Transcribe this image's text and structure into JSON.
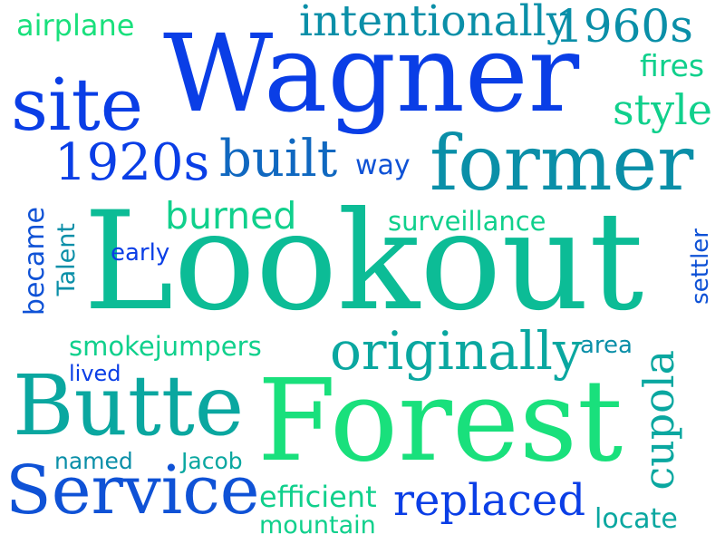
{
  "colors": {
    "background": "#ffffff",
    "palette": [
      "#0a3ee6",
      "#0f52d6",
      "#1068c0",
      "#0a8fa8",
      "#0aa7a0",
      "#0cbc96",
      "#10d08c",
      "#19e07c"
    ]
  },
  "words": [
    "Wagner",
    "Lookout",
    "Forest",
    "Butte",
    "Service",
    "former",
    "site",
    "originally",
    "1920s",
    "built",
    "1960s",
    "intentionally",
    "style",
    "fires",
    "airplane",
    "burned",
    "surveillance",
    "way",
    "early",
    "Talent",
    "became",
    "smokejumpers",
    "lived",
    "area",
    "cupola",
    "settler",
    "named",
    "Jacob",
    "efficient",
    "mountain",
    "replaced",
    "locate"
  ]
}
